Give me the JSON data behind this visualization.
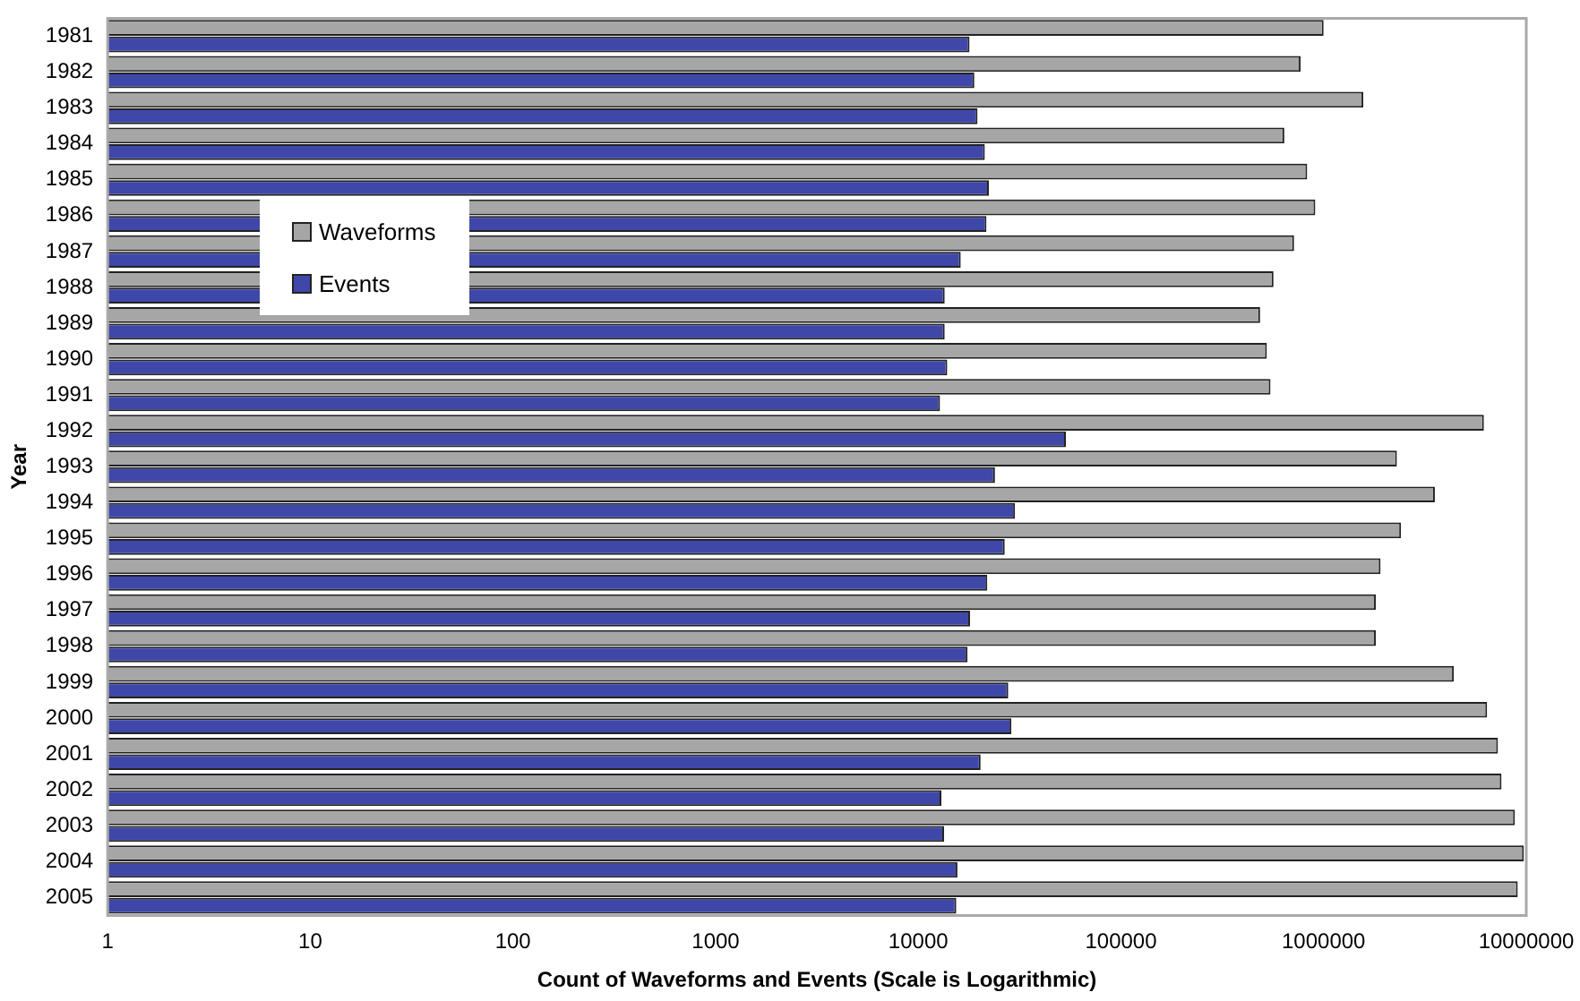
{
  "chart_data": {
    "type": "bar",
    "orientation": "horizontal",
    "xlabel": "Count of Waveforms and Events (Scale is Logarithmic)",
    "ylabel": "Year",
    "categories": [
      "1981",
      "1982",
      "1983",
      "1984",
      "1985",
      "1986",
      "1987",
      "1988",
      "1989",
      "1990",
      "1991",
      "1992",
      "1993",
      "1994",
      "1995",
      "1996",
      "1997",
      "1998",
      "1999",
      "2000",
      "2001",
      "2002",
      "2003",
      "2004",
      "2005"
    ],
    "series": [
      {
        "name": "Waveforms",
        "color": "#a6a6a6",
        "values": [
          1000000,
          770000,
          1570000,
          640000,
          830000,
          910000,
          715000,
          566000,
          486000,
          525000,
          547000,
          6180000,
          2300000,
          3540000,
          2410000,
          1910000,
          1810000,
          1810000,
          4390000,
          6410000,
          7250000,
          7550000,
          8790000,
          9730000,
          9080000
        ]
      },
      {
        "name": "Events",
        "color": "#3f48a8",
        "values": [
          17900,
          18900,
          19600,
          21300,
          22300,
          21700,
          16200,
          13500,
          13500,
          13900,
          12800,
          53500,
          23900,
          30000,
          26700,
          21900,
          18000,
          17500,
          27800,
          28800,
          20300,
          13000,
          13400,
          15600,
          15400
        ]
      }
    ],
    "log": "x",
    "xlim": [
      1,
      10000000
    ],
    "xticks": [
      1,
      10,
      100,
      1000,
      10000,
      100000,
      1000000,
      10000000
    ],
    "grid": false,
    "legend": "top left"
  }
}
